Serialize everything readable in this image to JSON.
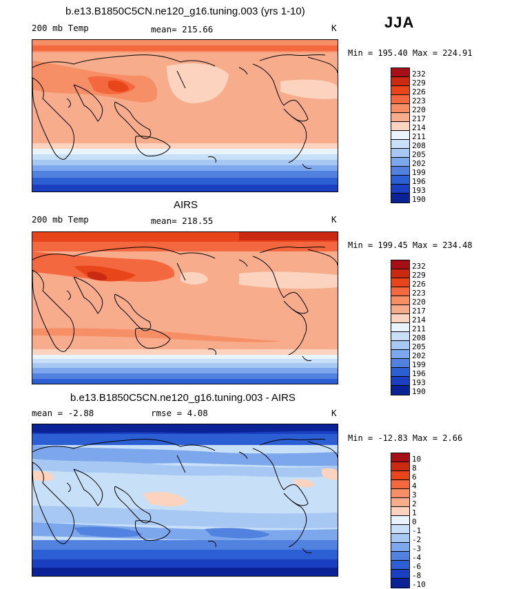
{
  "season": "JJA",
  "panels": [
    {
      "title": "b.e13.B1850C5CN.ne120_g16.tuning.003 (yrs 1-10)",
      "left_label": "200 mb Temp",
      "center_label": "mean= 215.66",
      "right_label": "K",
      "minmax": "Min = 195.40 Max = 224.91",
      "colorbar_labels": [
        "232",
        "229",
        "226",
        "223",
        "220",
        "217",
        "214",
        "211",
        "208",
        "205",
        "202",
        "199",
        "196",
        "193",
        "190"
      ],
      "colorbar_colors": [
        "#a50f15",
        "#cb2a12",
        "#e8451b",
        "#f4683f",
        "#f68e66",
        "#f7ad8c",
        "#fbd3bf",
        "#e8f3fb",
        "#c8e0f7",
        "#a6c8f2",
        "#7ca7ec",
        "#5182e0",
        "#2d5fd4",
        "#1a3fc0",
        "#0b2196"
      ]
    },
    {
      "title": "AIRS",
      "left_label": "200 mb Temp",
      "center_label": "mean= 218.55",
      "right_label": "K",
      "minmax": "Min = 199.45 Max = 234.48",
      "colorbar_labels": [
        "232",
        "229",
        "226",
        "223",
        "220",
        "217",
        "214",
        "211",
        "208",
        "205",
        "202",
        "199",
        "196",
        "193",
        "190"
      ],
      "colorbar_colors": [
        "#a50f15",
        "#cb2a12",
        "#e8451b",
        "#f4683f",
        "#f68e66",
        "#f7ad8c",
        "#fbd3bf",
        "#e8f3fb",
        "#c8e0f7",
        "#a6c8f2",
        "#7ca7ec",
        "#5182e0",
        "#2d5fd4",
        "#1a3fc0",
        "#0b2196"
      ]
    },
    {
      "title": "b.e13.B1850C5CN.ne120_g16.tuning.003 - AIRS",
      "left_label": "mean =   -2.88",
      "center_label": "rmse =   4.08",
      "right_label": "K",
      "minmax": "Min = -12.83 Max =   2.66",
      "colorbar_labels": [
        "10",
        "8",
        "6",
        "4",
        "3",
        "2",
        "1",
        "0",
        "-1",
        "-2",
        "-3",
        "-4",
        "-6",
        "-8",
        "-10"
      ],
      "colorbar_colors": [
        "#a50f15",
        "#cb2a12",
        "#e8451b",
        "#f4683f",
        "#f68e66",
        "#f7ad8c",
        "#fbd3bf",
        "#e8f3fb",
        "#c8e0f7",
        "#a6c8f2",
        "#7ca7ec",
        "#5182e0",
        "#2d5fd4",
        "#1a3fc0",
        "#0b2196"
      ]
    }
  ]
}
